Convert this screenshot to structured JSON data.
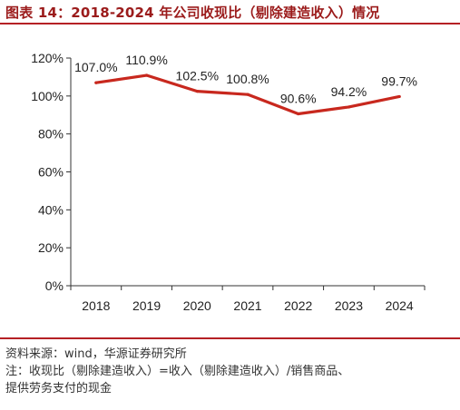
{
  "title": "图表 14：2018-2024 年公司收现比（剔除建造收入）情况",
  "source": "资料来源：wind，华源证券研究所",
  "note_line1": "注：收现比（剔除建造收入）=收入（剔除建造收入）/销售商品、",
  "note_line2": "提供劳务支付的现金",
  "colors": {
    "line": "#c8281e",
    "accent": "#b52025"
  },
  "chart_data": {
    "type": "line",
    "categories": [
      "2018",
      "2019",
      "2020",
      "2021",
      "2022",
      "2023",
      "2024"
    ],
    "series": [
      {
        "values": [
          107.0,
          110.9,
          102.5,
          100.8,
          90.6,
          94.2,
          99.7
        ]
      }
    ],
    "data_labels": [
      "107.0%",
      "110.9%",
      "102.5%",
      "100.8%",
      "90.6%",
      "94.2%",
      "99.7%"
    ],
    "yticks": [
      "0%",
      "20%",
      "40%",
      "60%",
      "80%",
      "100%",
      "120%"
    ],
    "ylim": [
      0,
      120
    ],
    "grid": false,
    "legend": "none"
  }
}
